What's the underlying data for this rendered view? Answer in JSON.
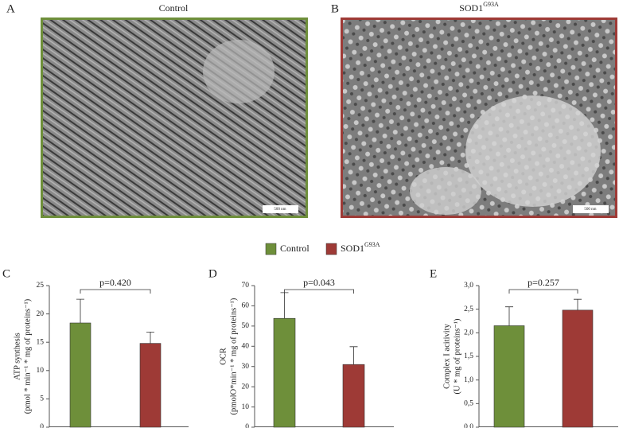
{
  "images": [
    {
      "panel": "A",
      "title": "Control",
      "scale_bar": "500 nm"
    },
    {
      "panel": "B",
      "title": "SOD1",
      "title_sup": "G93A",
      "scale_bar": "500 nm"
    }
  ],
  "legend": [
    {
      "name": "Control",
      "color": "#6e8f3a"
    },
    {
      "name": "SOD1",
      "sup": "G93A",
      "color": "#9e3a36"
    }
  ],
  "chart_data": [
    {
      "type": "bar",
      "panel": "C",
      "ylabel": [
        "ATP synthesis",
        "(pmol * min⁻¹ * mg of proteins⁻¹)"
      ],
      "annotation": "p=0.420",
      "values": [
        18.4,
        14.8
      ],
      "errors": [
        4.2,
        2.0
      ],
      "ylim": [
        0,
        25
      ],
      "yticks": [
        0,
        5,
        10,
        15,
        20,
        25
      ]
    },
    {
      "type": "bar",
      "panel": "D",
      "ylabel": [
        "OCR",
        "(pmolO*min⁻¹ * mg of proteins⁻¹)"
      ],
      "annotation": "p=0.043",
      "values": [
        53.8,
        31
      ],
      "errors": [
        12.7,
        8.8
      ],
      "ylim": [
        0,
        70
      ],
      "yticks": [
        0,
        10,
        20,
        30,
        40,
        50,
        60,
        70
      ]
    },
    {
      "type": "bar",
      "panel": "E",
      "ylabel": [
        "Complex I acitivity",
        "(U * mg of proteins⁻¹)"
      ],
      "annotation": "p=0.257",
      "values": [
        2.15,
        2.48
      ],
      "errors": [
        0.4,
        0.23
      ],
      "ylim": [
        0,
        3
      ],
      "yticks": [
        {
          "value": 0,
          "label": "0,0"
        },
        {
          "value": 0.5,
          "label": "0,5"
        },
        {
          "value": 1,
          "label": "1,0"
        },
        {
          "value": 1.5,
          "label": "1,5"
        },
        {
          "value": 2,
          "label": "2,0"
        },
        {
          "value": 2.5,
          "label": "2,5"
        },
        {
          "value": 3,
          "label": "3,0"
        }
      ]
    }
  ]
}
